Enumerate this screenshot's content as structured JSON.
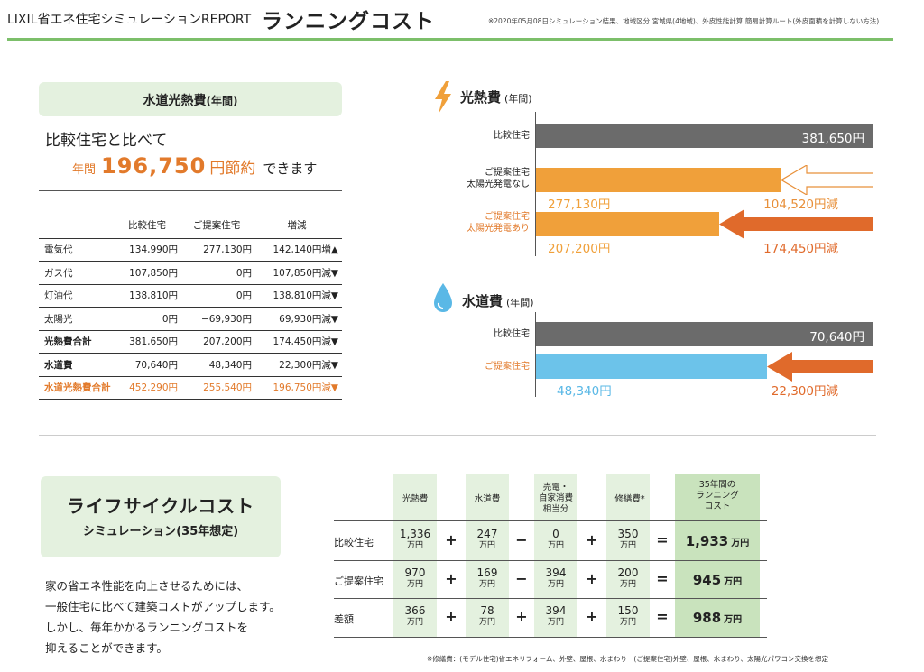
{
  "header": {
    "brand": "LIXIL省エネ住宅シミュレーションREPORT",
    "title": "ランニングコスト",
    "note": "※2020年05月08日シミュレーション結果、地域区分:宮城県(4地域)、外皮性能計算:簡易計算ルート(外皮面積を計算しない方法)"
  },
  "utility": {
    "heading": "水道光熱費",
    "heading_suffix": "(年間)",
    "compare_line": "比較住宅と比べて",
    "savings_prefix": "年間",
    "savings_amount": "196,750",
    "savings_unit": "円節約",
    "savings_suffix": "できます",
    "columns": [
      "",
      "比較住宅",
      "ご提案住宅",
      "増減"
    ],
    "rows": [
      {
        "label": "電気代",
        "compare": "134,990円",
        "proposal": "277,130円",
        "diff": "142,140円増▲",
        "style": ""
      },
      {
        "label": "ガス代",
        "compare": "107,850円",
        "proposal": "0円",
        "diff": "107,850円減▼",
        "style": ""
      },
      {
        "label": "灯油代",
        "compare": "138,810円",
        "proposal": "0円",
        "diff": "138,810円減▼",
        "style": ""
      },
      {
        "label": "太陽光",
        "compare": "0円",
        "proposal": "−69,930円",
        "diff": "69,930円減▼",
        "style": ""
      },
      {
        "label": "光熱費合計",
        "compare": "381,650円",
        "proposal": "207,200円",
        "diff": "174,450円減▼",
        "style": "bold"
      },
      {
        "label": "水道費",
        "compare": "70,640円",
        "proposal": "48,340円",
        "diff": "22,300円減▼",
        "style": "bold"
      },
      {
        "label": "水道光熱費合計",
        "compare": "452,290円",
        "proposal": "255,540円",
        "diff": "196,750円減▼",
        "style": "orange"
      }
    ]
  },
  "energy_chart": {
    "title": "光熱費",
    "title_suffix": "(年間)",
    "icon": "lightning-icon",
    "max": 381650,
    "rows": [
      {
        "label1": "比較住宅",
        "label2": "",
        "value": 381650,
        "value_label": "381,650円",
        "reduction": 0,
        "reduction_label": "",
        "bar_color": "#6b6b6b",
        "label_color": "#222222"
      },
      {
        "label1": "ご提案住宅",
        "label2": "太陽光発電なし",
        "value": 277130,
        "value_label": "277,130円",
        "reduction": 104520,
        "reduction_label": "104,520円減",
        "bar_color": "#f0a03a",
        "label_color": "#222222"
      },
      {
        "label1": "ご提案住宅",
        "label2": "太陽光発電あり",
        "value": 207200,
        "value_label": "207,200円",
        "reduction": 174450,
        "reduction_label": "174,450円減",
        "bar_color": "#f0a03a",
        "label_color": "#e27a2b"
      }
    ]
  },
  "water_chart": {
    "title": "水道費",
    "title_suffix": "(年間)",
    "icon": "water-drop-icon",
    "max": 70640,
    "rows": [
      {
        "label1": "比較住宅",
        "value": 70640,
        "value_label": "70,640円",
        "reduction": 0,
        "reduction_label": ""
      },
      {
        "label1": "ご提案住宅",
        "value": 48340,
        "value_label": "48,340円",
        "reduction": 22300,
        "reduction_label": "22,300円減"
      }
    ]
  },
  "lifecycle": {
    "title": "ライフサイクルコスト",
    "subtitle": "シミュレーション(35年想定)",
    "desc": [
      "家の省エネ性能を向上させるためには、",
      "一般住宅に比べて建築コストがアップします。",
      "しかし、毎年かかるランニングコストを",
      "抑えることができます。"
    ],
    "headers": {
      "energy": "光熱費",
      "water": "水道費",
      "sell1": "売電・",
      "sell2": "自家消費",
      "sell3": "相当分",
      "repair": "修繕費",
      "repair_mark": "*",
      "total1": "35年間の",
      "total2": "ランニング",
      "total3": "コスト"
    },
    "unit": "万円",
    "rows": [
      {
        "label": "比較住宅",
        "energy": "1,336",
        "op1": "+",
        "water": "247",
        "op2": "−",
        "sell": "0",
        "op3": "+",
        "repair": "350",
        "eq": "=",
        "total": "1,933"
      },
      {
        "label": "ご提案住宅",
        "energy": "970",
        "op1": "+",
        "water": "169",
        "op2": "−",
        "sell": "394",
        "op3": "+",
        "repair": "200",
        "eq": "=",
        "total": "945"
      },
      {
        "label": "差額",
        "energy": "366",
        "op1": "+",
        "water": "78",
        "op2": "+",
        "sell": "394",
        "op3": "+",
        "repair": "150",
        "eq": "=",
        "total": "988"
      }
    ],
    "footnote": "※修繕費：(モデル住宅)省エネリフォーム、外壁、屋根、水まわり　(ご提案住宅)外壁、屋根、水まわり、太陽光パワコン交換を想定"
  }
}
